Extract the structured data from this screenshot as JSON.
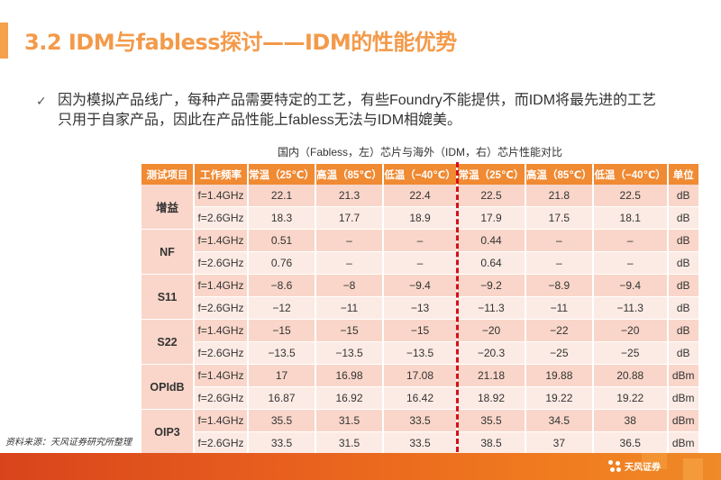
{
  "title": "3.2 IDM与fabless探讨——IDM的性能优势",
  "bullet": {
    "icon": "✓",
    "text": "因为模拟产品线广，每种产品需要特定的工艺，有些Foundry不能提供，而IDM将最先进的工艺只用于自家产品，因此在产品性能上fabless无法与IDM相媲美。"
  },
  "table": {
    "caption": "国内（Fabless，左）芯片与海外（IDM，右）芯片性能对比",
    "headers": [
      "测试项目",
      "工作频率",
      "常温（25℃）",
      "高温（85℃）",
      "低温（−40℃）",
      "常温（25℃）",
      "高温（85℃）",
      "低温（−40℃）",
      "单位"
    ],
    "groups": [
      {
        "item": "增益",
        "rows": [
          {
            "freq": "f=1.4GHz",
            "values": [
              "22.1",
              "21.3",
              "22.4",
              "22.5",
              "21.8",
              "22.5"
            ],
            "unit": "dB"
          },
          {
            "freq": "f=2.6GHz",
            "values": [
              "18.3",
              "17.7",
              "18.9",
              "17.9",
              "17.5",
              "18.1"
            ],
            "unit": "dB"
          }
        ]
      },
      {
        "item": "NF",
        "rows": [
          {
            "freq": "f=1.4GHz",
            "values": [
              "0.51",
              "–",
              "–",
              "0.44",
              "–",
              "–"
            ],
            "unit": "dB"
          },
          {
            "freq": "f=2.6GHz",
            "values": [
              "0.76",
              "–",
              "–",
              "0.64",
              "–",
              "–"
            ],
            "unit": "dB"
          }
        ]
      },
      {
        "item": "S11",
        "rows": [
          {
            "freq": "f=1.4GHz",
            "values": [
              "−8.6",
              "−8",
              "−9.4",
              "−9.2",
              "−8.9",
              "−9.4"
            ],
            "unit": "dB"
          },
          {
            "freq": "f=2.6GHz",
            "values": [
              "−12",
              "−11",
              "−13",
              "−11.3",
              "−11",
              "−11.3"
            ],
            "unit": "dB"
          }
        ]
      },
      {
        "item": "S22",
        "rows": [
          {
            "freq": "f=1.4GHz",
            "values": [
              "−15",
              "−15",
              "−15",
              "−20",
              "−22",
              "−20"
            ],
            "unit": "dB"
          },
          {
            "freq": "f=2.6GHz",
            "values": [
              "−13.5",
              "−13.5",
              "−13.5",
              "−20.3",
              "−25",
              "−25"
            ],
            "unit": "dB"
          }
        ]
      },
      {
        "item": "OPIdB",
        "rows": [
          {
            "freq": "f=1.4GHz",
            "values": [
              "17",
              "16.98",
              "17.08",
              "21.18",
              "19.88",
              "20.88"
            ],
            "unit": "dBm"
          },
          {
            "freq": "f=2.6GHz",
            "values": [
              "16.87",
              "16.92",
              "16.42",
              "18.92",
              "19.22",
              "19.22"
            ],
            "unit": "dBm"
          }
        ]
      },
      {
        "item": "OIP3",
        "rows": [
          {
            "freq": "f=1.4GHz",
            "values": [
              "35.5",
              "31.5",
              "33.5",
              "35.5",
              "34.5",
              "38"
            ],
            "unit": "dBm"
          },
          {
            "freq": "f=2.6GHz",
            "values": [
              "33.5",
              "31.5",
              "33.5",
              "38.5",
              "37",
              "36.5"
            ],
            "unit": "dBm"
          }
        ]
      }
    ]
  },
  "source": "资料来源：天风证券研究所整理",
  "footer": {
    "logo_text": "天风证券"
  },
  "colors": {
    "accent": "#f39a4a",
    "header_bg": "#f08a33",
    "row_dark": "#f9d6c9",
    "row_light": "#fcebe4",
    "divider": "#d0121b"
  }
}
